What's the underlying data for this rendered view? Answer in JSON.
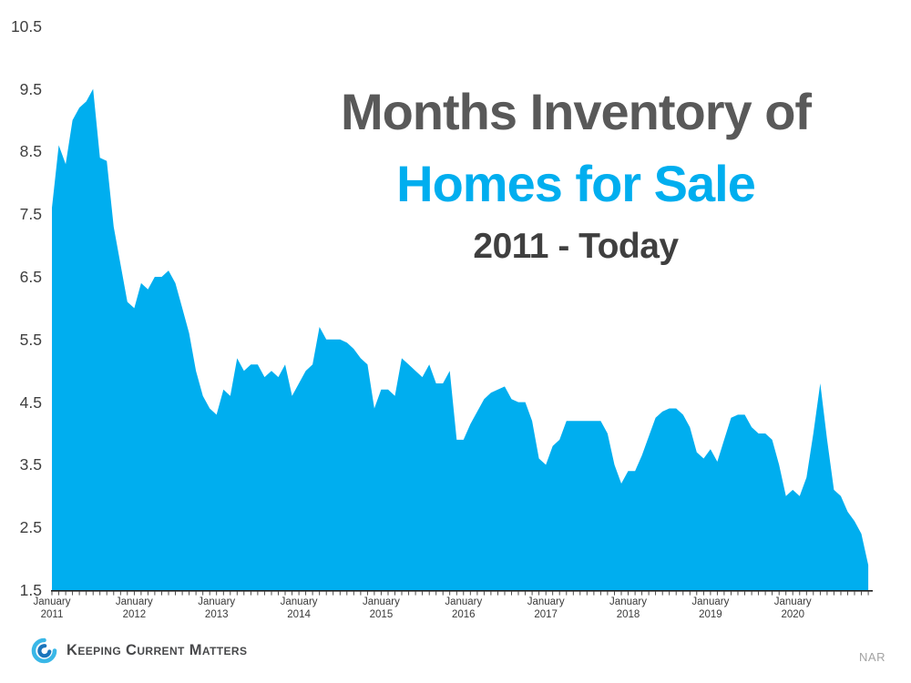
{
  "title": {
    "line1": "Months Inventory of",
    "line2": "Homes for Sale",
    "line3": "2011 - Today"
  },
  "footer": {
    "brand": "Keeping Current Matters",
    "source": "NAR",
    "logo_icon": "kcm-swirl-icon"
  },
  "colors": {
    "area_fill": "#00AEEF",
    "title_gray": "#595959",
    "title_blue": "#00AEEF",
    "subtitle_dark": "#3F3F3F",
    "axis_line": "#1F1F1F",
    "tick_mark": "#3A3A3A",
    "axis_text": "#404040",
    "source_text": "#A3A3A3",
    "logo_outer": "#39B7E7",
    "logo_inner": "#1B75BC"
  },
  "chart_data": {
    "type": "area",
    "title": "Months Inventory of Homes for Sale",
    "subtitle": "2011 - Today",
    "source": "NAR",
    "grid": false,
    "legend": "none",
    "x_unit": "month",
    "x_start": "January 2011",
    "x_end": "December 2020",
    "ylim": [
      1.5,
      10.5
    ],
    "y_tick_labels": [
      "1.5",
      "2.5",
      "3.5",
      "4.5",
      "5.5",
      "6.5",
      "7.5",
      "8.5",
      "9.5",
      "10.5"
    ],
    "x_ticks": [
      {
        "month": "January",
        "year": "2011"
      },
      {
        "month": "January",
        "year": "2012"
      },
      {
        "month": "January",
        "year": "2013"
      },
      {
        "month": "January",
        "year": "2014"
      },
      {
        "month": "January",
        "year": "2015"
      },
      {
        "month": "January",
        "year": "2016"
      },
      {
        "month": "January",
        "year": "2017"
      },
      {
        "month": "January",
        "year": "2018"
      },
      {
        "month": "January",
        "year": "2019"
      },
      {
        "month": "January",
        "year": "2020"
      }
    ],
    "series": [
      {
        "name": "Months Inventory",
        "values": [
          7.6,
          8.6,
          8.3,
          9.0,
          9.2,
          9.3,
          9.5,
          8.4,
          8.35,
          7.3,
          6.7,
          6.1,
          6.0,
          6.4,
          6.3,
          6.5,
          6.5,
          6.6,
          6.4,
          6.0,
          5.6,
          5.0,
          4.6,
          4.4,
          4.3,
          4.7,
          4.6,
          5.2,
          5.0,
          5.1,
          5.1,
          4.9,
          5.0,
          4.9,
          5.1,
          4.6,
          4.8,
          5.0,
          5.1,
          5.7,
          5.5,
          5.5,
          5.5,
          5.45,
          5.35,
          5.2,
          5.1,
          4.4,
          4.7,
          4.7,
          4.6,
          5.2,
          5.1,
          5.0,
          4.9,
          5.1,
          4.8,
          4.8,
          5.0,
          3.9,
          3.9,
          4.15,
          4.35,
          4.55,
          4.65,
          4.7,
          4.75,
          4.55,
          4.5,
          4.5,
          4.2,
          3.6,
          3.5,
          3.8,
          3.9,
          4.2,
          4.2,
          4.2,
          4.2,
          4.2,
          4.2,
          4.0,
          3.5,
          3.2,
          3.4,
          3.4,
          3.65,
          3.95,
          4.25,
          4.35,
          4.4,
          4.4,
          4.3,
          4.1,
          3.7,
          3.6,
          3.75,
          3.55,
          3.9,
          4.25,
          4.3,
          4.3,
          4.1,
          4.0,
          4.0,
          3.9,
          3.5,
          3.0,
          3.1,
          3.0,
          3.3,
          4.0,
          4.8,
          3.9,
          3.1,
          3.0,
          2.75,
          2.6,
          2.4,
          1.9
        ]
      }
    ]
  }
}
